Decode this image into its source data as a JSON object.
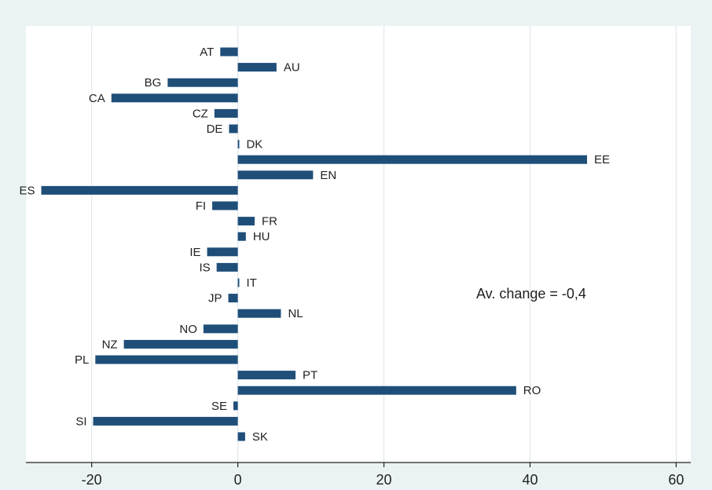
{
  "chart_data": {
    "type": "bar",
    "orientation": "horizontal",
    "title": "",
    "xlabel": "",
    "ylabel": "",
    "xlim": [
      -29,
      62
    ],
    "xticks": [
      -20,
      0,
      20,
      40,
      60
    ],
    "grid": true,
    "bar_color": "#1f4e79",
    "plot_background": "#ffffff",
    "outer_background": "#eaf2f3",
    "grid_color": "#dfe8ec",
    "categories": [
      "AT",
      "AU",
      "BG",
      "CA",
      "CZ",
      "DE",
      "DK",
      "EE",
      "EN",
      "ES",
      "FI",
      "FR",
      "HU",
      "IE",
      "IS",
      "IT",
      "JP",
      "NL",
      "NO",
      "NZ",
      "PL",
      "PT",
      "RO",
      "SE",
      "SI",
      "SK"
    ],
    "values": [
      -2.4,
      5.3,
      -9.6,
      -17.3,
      -3.2,
      -1.2,
      0.2,
      47.8,
      10.3,
      -26.9,
      -3.5,
      2.3,
      1.1,
      -4.2,
      -2.9,
      0.2,
      -1.3,
      5.9,
      -4.7,
      -15.6,
      -19.5,
      7.9,
      38.1,
      -0.6,
      -19.8,
      1.0
    ],
    "annotation": "Av. change = -0,4"
  }
}
